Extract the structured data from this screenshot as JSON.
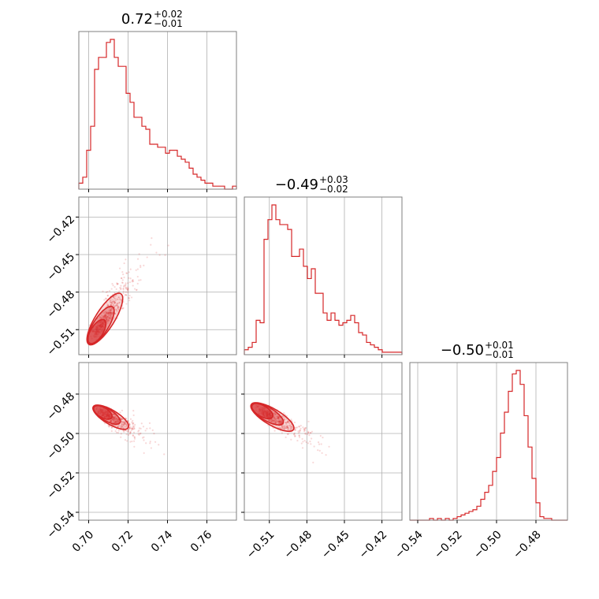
{
  "chart_data": {
    "type": "corner",
    "color": "#d62728",
    "parameters": [
      {
        "title_value": "0.72",
        "err_plus": "+0.02",
        "err_minus": "−0.01",
        "range": [
          0.695,
          0.775
        ]
      },
      {
        "title_value": "−0.49",
        "err_plus": "+0.03",
        "err_minus": "−0.02",
        "range": [
          -0.53,
          -0.404
        ]
      },
      {
        "title_value": "−0.50",
        "err_plus": "+0.01",
        "err_minus": "−0.01",
        "range": [
          -0.544,
          -0.464
        ]
      }
    ],
    "ticks": {
      "p0": {
        "values": [
          0.7,
          0.72,
          0.74,
          0.76
        ],
        "labels": [
          "0.70",
          "0.72",
          "0.74",
          "0.76"
        ]
      },
      "p1_y": {
        "values": [
          -0.51,
          -0.48,
          -0.45,
          -0.42
        ],
        "labels": [
          "−0.51",
          "−0.48",
          "−0.45",
          "−0.42"
        ]
      },
      "p1_x": {
        "values": [
          -0.51,
          -0.48,
          -0.45,
          -0.42
        ],
        "labels": [
          "−0.51",
          "−0.48",
          "−0.45",
          "−0.42"
        ]
      },
      "p2_y": {
        "values": [
          -0.48,
          -0.5,
          -0.52,
          -0.54
        ],
        "labels": [
          "−0.48",
          "−0.50",
          "−0.52",
          "−0.54"
        ]
      },
      "p2_x": {
        "values": [
          -0.54,
          -0.52,
          -0.5,
          -0.48
        ],
        "labels": [
          "−0.54",
          "−0.52",
          "−0.50",
          "−0.48"
        ]
      }
    },
    "histograms": [
      {
        "param": 0,
        "bins_range": [
          0.695,
          0.775
        ],
        "counts": [
          2,
          4,
          13,
          21,
          40,
          44,
          44,
          49,
          50,
          44,
          41,
          41,
          32,
          29,
          24,
          24,
          21,
          20,
          15,
          15,
          14,
          14,
          12,
          13,
          13,
          11,
          10,
          9,
          7,
          5,
          4,
          3,
          2,
          2,
          1,
          1,
          1,
          0,
          0,
          1
        ]
      },
      {
        "param": 1,
        "bins_range": [
          -0.53,
          -0.404
        ],
        "counts": [
          2,
          3,
          5,
          14,
          13,
          47,
          55,
          61,
          55,
          53,
          53,
          51,
          40,
          40,
          43,
          36,
          31,
          35,
          25,
          25,
          17,
          14,
          17,
          14,
          12,
          13,
          14,
          16,
          13,
          9,
          8,
          5,
          4,
          3,
          2,
          1,
          1,
          1,
          1,
          1
        ]
      },
      {
        "param": 2,
        "bins_range": [
          -0.544,
          -0.464
        ],
        "counts": [
          0,
          0,
          0,
          0,
          0,
          1,
          0,
          1,
          0,
          1,
          0,
          1,
          2,
          3,
          4,
          5,
          6,
          8,
          12,
          16,
          20,
          28,
          36,
          50,
          62,
          74,
          84,
          86,
          78,
          60,
          42,
          24,
          10,
          2,
          1,
          1,
          0,
          0,
          0,
          0
        ]
      }
    ],
    "pairs": [
      {
        "x_param": 0,
        "y_param": 1,
        "center": [
          0.702,
          -0.517
        ],
        "direction": [
          0.02,
          0.05
        ],
        "spread": 0.011
      },
      {
        "x_param": 0,
        "y_param": 2,
        "center": [
          0.705,
          -0.488
        ],
        "direction": [
          0.02,
          -0.012
        ],
        "spread": 0.0045
      },
      {
        "x_param": 1,
        "y_param": 2,
        "center": [
          -0.52,
          -0.487
        ],
        "direction": [
          0.04,
          -0.015
        ],
        "spread": 0.0045
      }
    ],
    "grid": true
  }
}
